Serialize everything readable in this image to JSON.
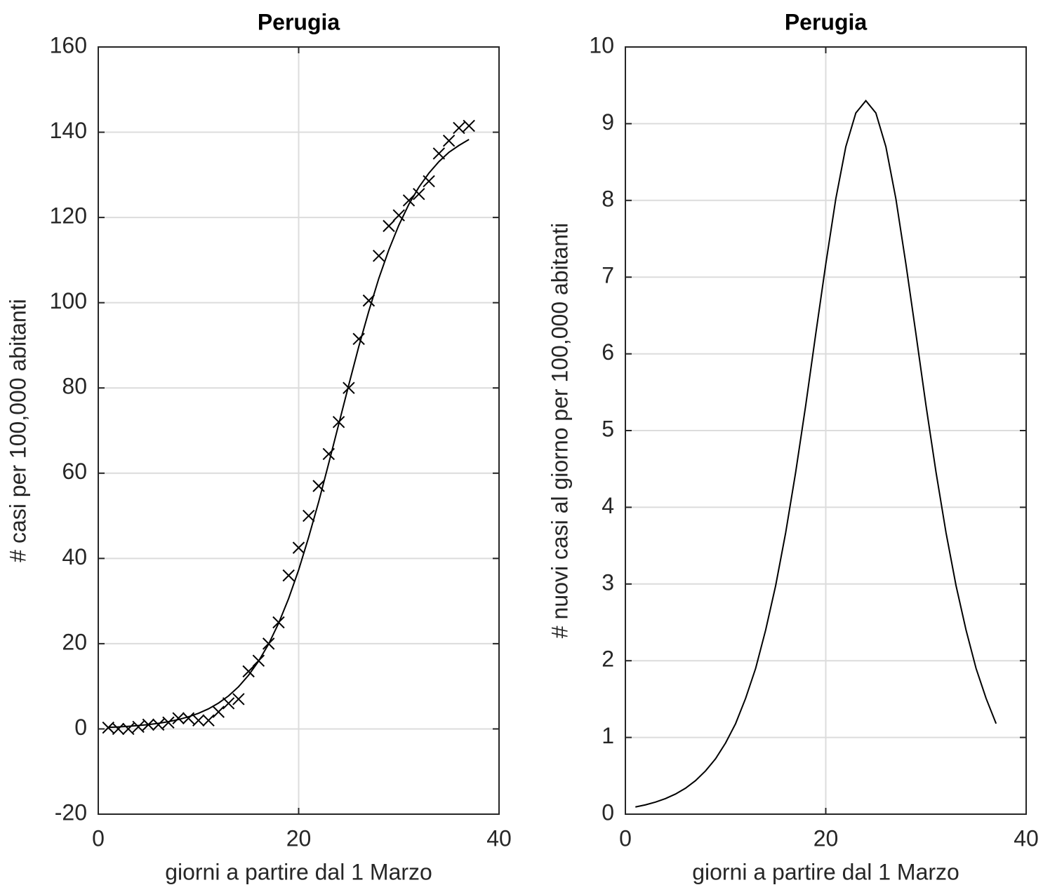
{
  "chart_data": [
    {
      "type": "line",
      "title": "Perugia",
      "xlabel": "giorni a partire dal 1 Marzo",
      "ylabel": "# casi per 100,000 abitanti",
      "x": [
        1,
        2,
        3,
        4,
        5,
        6,
        7,
        8,
        9,
        10,
        11,
        12,
        13,
        14,
        15,
        16,
        17,
        18,
        19,
        20,
        21,
        22,
        23,
        24,
        25,
        26,
        27,
        28,
        29,
        30,
        31,
        32,
        33,
        34,
        35,
        36,
        37
      ],
      "series": [
        {
          "color": "#000000",
          "marker": "x",
          "line": false,
          "values": [
            0.3,
            0,
            0,
            0.5,
            1,
            1,
            1.5,
            2.5,
            2.5,
            2,
            2,
            4,
            6,
            7,
            13.5,
            16,
            20,
            25,
            36,
            42.5,
            50,
            57,
            64.5,
            72,
            80,
            91.5,
            100.5,
            111,
            118,
            120.5,
            124,
            125.5,
            128.5,
            135,
            138,
            141,
            141.5
          ]
        },
        {
          "color": "#000000",
          "marker": "none",
          "line": true,
          "values": [
            0.36,
            0.47,
            0.61,
            0.79,
            1.02,
            1.31,
            1.7,
            2.2,
            2.84,
            3.66,
            4.71,
            6.06,
            7.74,
            9.89,
            12.6,
            15.9,
            19.9,
            24.8,
            30.6,
            37.3,
            45,
            53.3,
            62.3,
            71.5,
            80.7,
            89.7,
            98,
            105.7,
            112.4,
            118.2,
            123.1,
            127.1,
            130.4,
            133.1,
            135.3,
            136.9,
            138.3
          ]
        }
      ],
      "xlim": [
        0,
        40
      ],
      "xticks": [
        0,
        20,
        40
      ],
      "ylim": [
        -20,
        160
      ],
      "yticks": [
        -20,
        0,
        20,
        40,
        60,
        80,
        100,
        120,
        140,
        160
      ],
      "grid": true
    },
    {
      "type": "line",
      "title": "Perugia",
      "xlabel": "giorni a partire dal 1 Marzo",
      "ylabel": "# nuovi casi al giorno per 100,000 abitanti",
      "x": [
        1,
        2,
        3,
        4,
        5,
        6,
        7,
        8,
        9,
        10,
        11,
        12,
        13,
        14,
        15,
        16,
        17,
        18,
        19,
        20,
        21,
        22,
        23,
        24,
        25,
        26,
        27,
        28,
        29,
        30,
        31,
        32,
        33,
        34,
        35,
        36,
        37
      ],
      "series": [
        {
          "color": "#000000",
          "marker": "none",
          "line": true,
          "values": [
            0.094,
            0.121,
            0.157,
            0.203,
            0.262,
            0.338,
            0.437,
            0.564,
            0.722,
            0.928,
            1.18,
            1.51,
            1.9,
            2.4,
            2.98,
            3.67,
            4.46,
            5.33,
            6.26,
            7.17,
            8.02,
            8.7,
            9.14,
            9.3,
            9.14,
            8.7,
            8.02,
            7.17,
            6.26,
            5.33,
            4.46,
            3.67,
            2.98,
            2.4,
            1.9,
            1.51,
            1.18
          ]
        }
      ],
      "xlim": [
        0,
        40
      ],
      "xticks": [
        0,
        20,
        40
      ],
      "ylim": [
        0,
        10
      ],
      "yticks": [
        0,
        1,
        2,
        3,
        4,
        5,
        6,
        7,
        8,
        9,
        10
      ],
      "grid": true
    }
  ]
}
